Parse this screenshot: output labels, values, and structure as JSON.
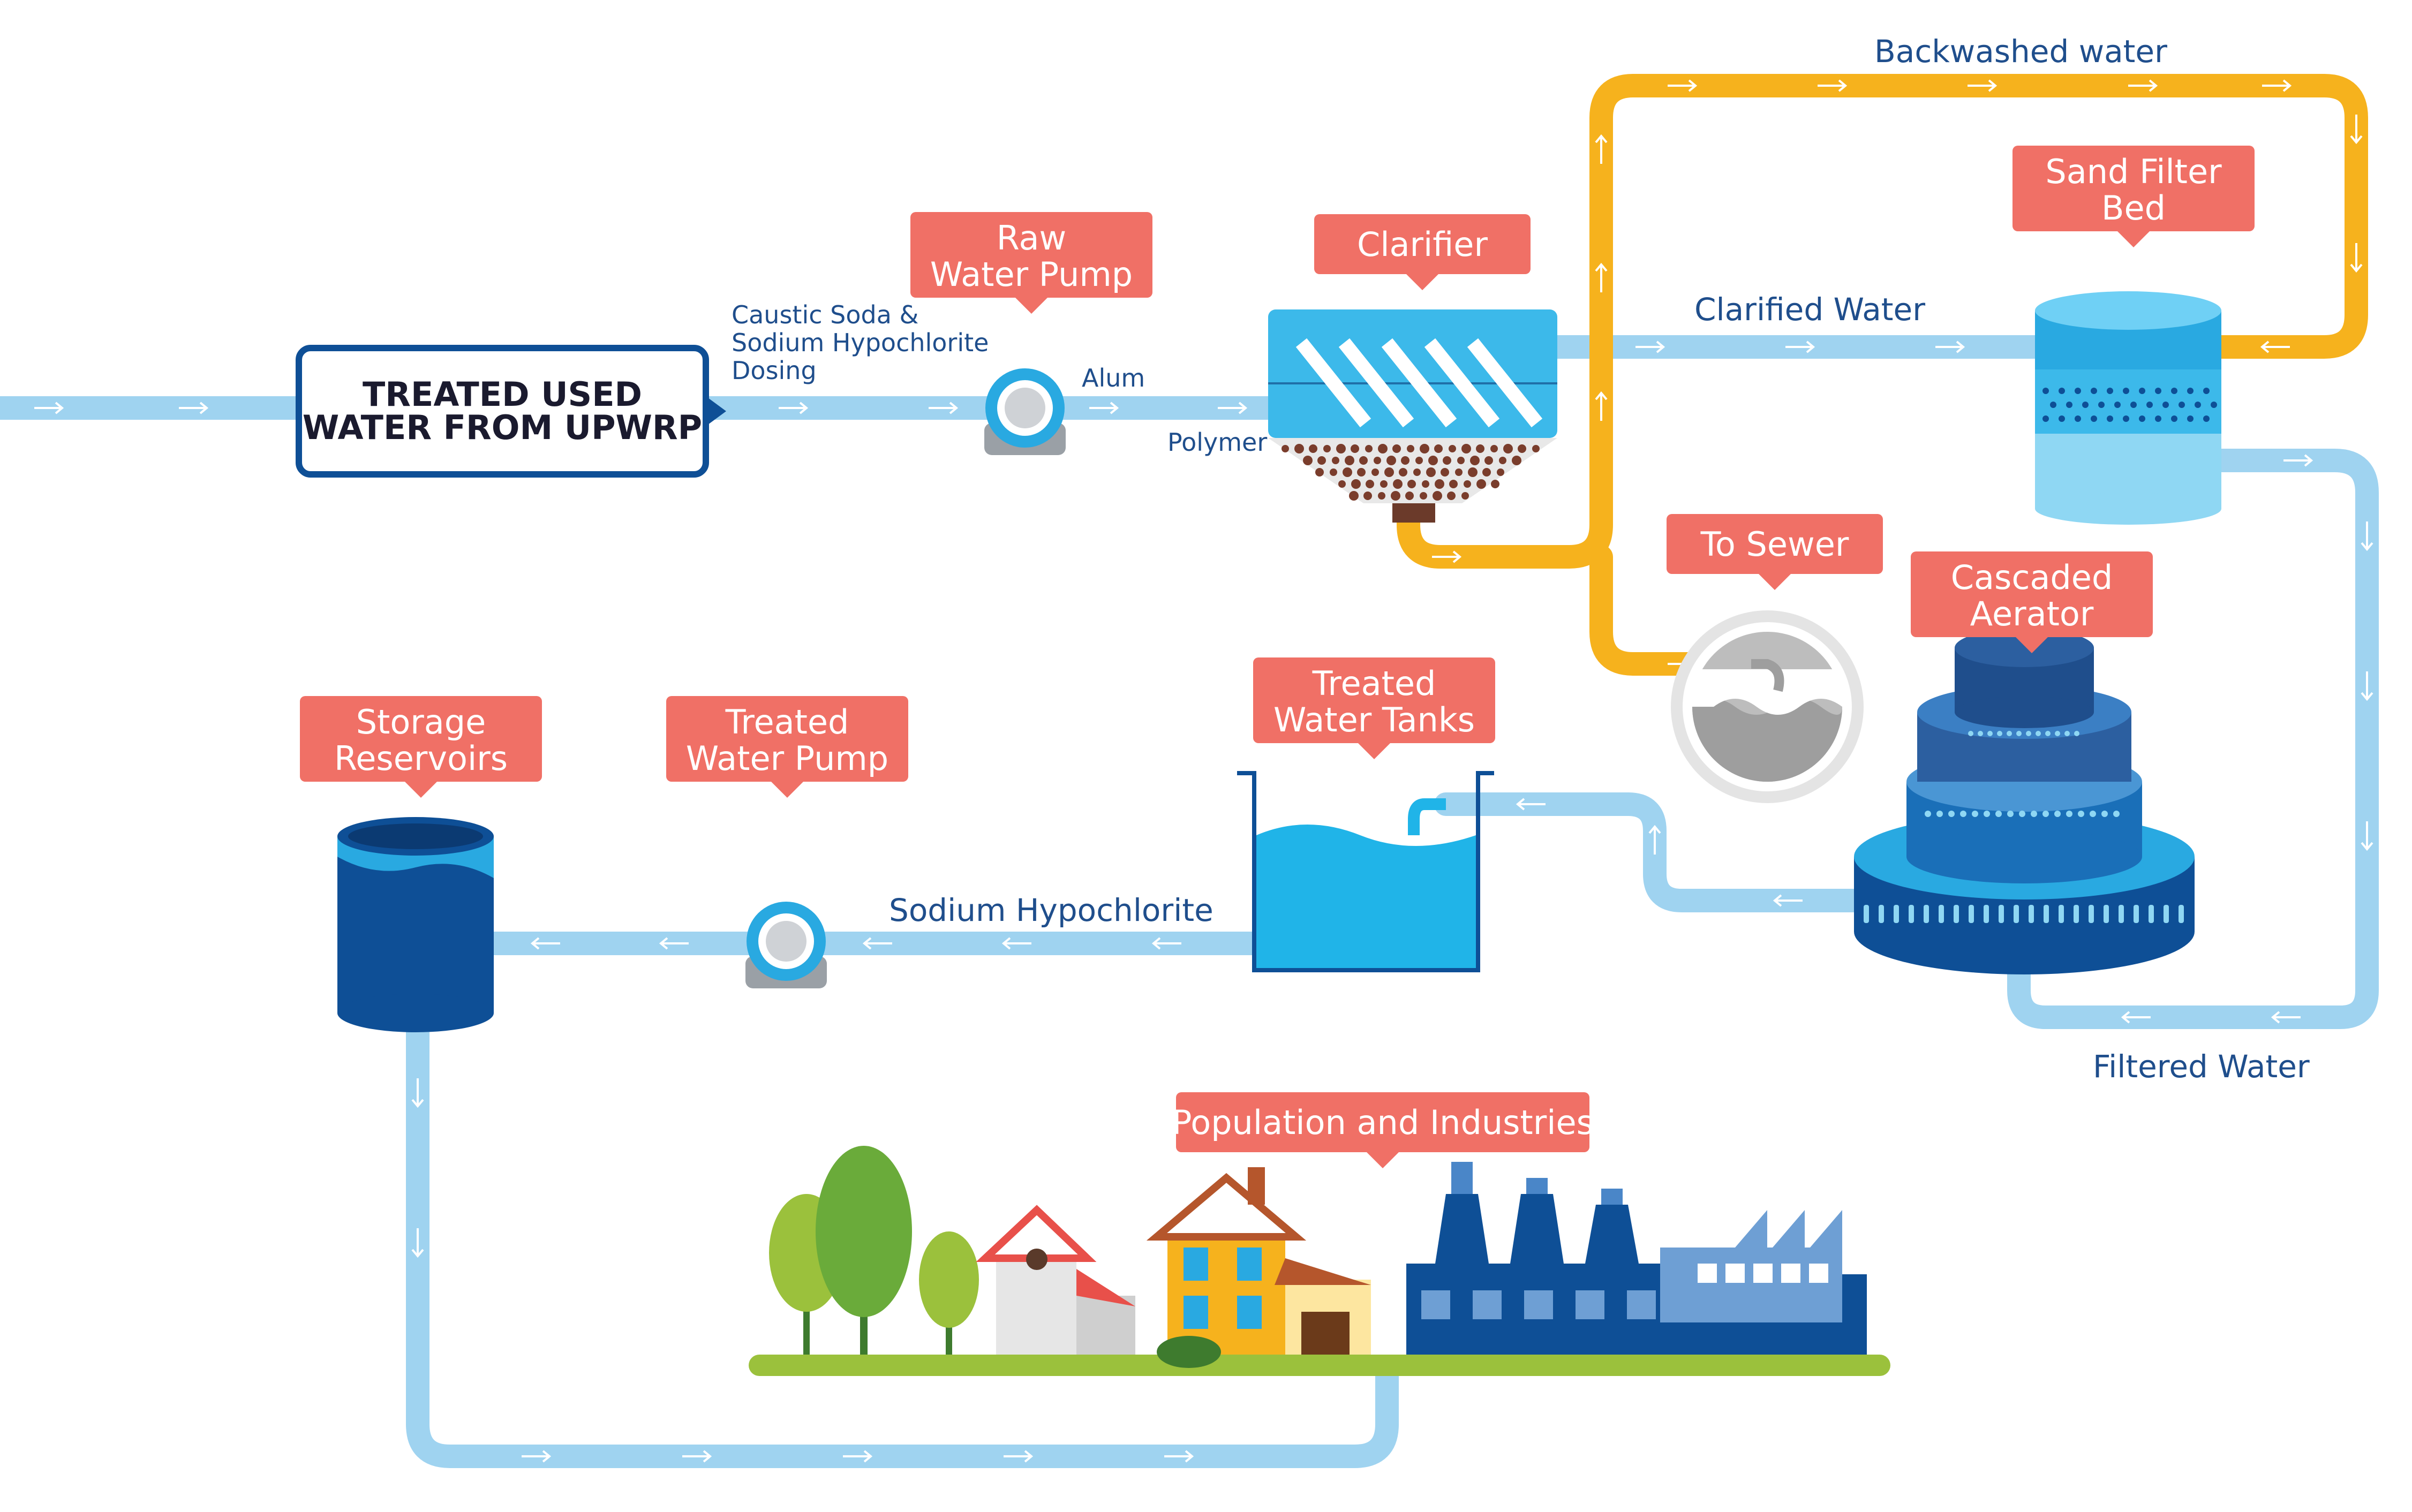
{
  "source_box": {
    "line1": "TREATED USED",
    "line2": "WATER FROM UPWRP"
  },
  "labels": {
    "raw_pump": [
      "Raw",
      "Water Pump"
    ],
    "clarifier": [
      "Clarifier"
    ],
    "sand_filter": [
      "Sand Filter",
      "Bed"
    ],
    "to_sewer": [
      "To Sewer"
    ],
    "aerator": [
      "Cascaded",
      "Aerator"
    ],
    "treated_tanks": [
      "Treated",
      "Water Tanks"
    ],
    "treated_pump": [
      "Treated",
      "Water Pump"
    ],
    "storage": [
      "Storage",
      "Reservoirs"
    ],
    "population": [
      "Population and Industries"
    ]
  },
  "chemicals": {
    "dosing": [
      "Caustic Soda &",
      "Sodium Hypochlorite",
      "Dosing"
    ],
    "alum": "Alum",
    "polymer": "Polymer",
    "sodium_hypochlorite": "Sodium Hypochlorite"
  },
  "flows": {
    "backwashed": "Backwashed water",
    "clarified": "Clarified Water",
    "filtered": "Filtered Water"
  },
  "colors": {
    "label_bg": "#f07066",
    "pipe_water": "#9fd3f0",
    "pipe_backwash": "#f6b21d",
    "text_blue": "#1f4e8c",
    "tank_blue": "#0e4f96",
    "water_cyan": "#20b4e8"
  }
}
